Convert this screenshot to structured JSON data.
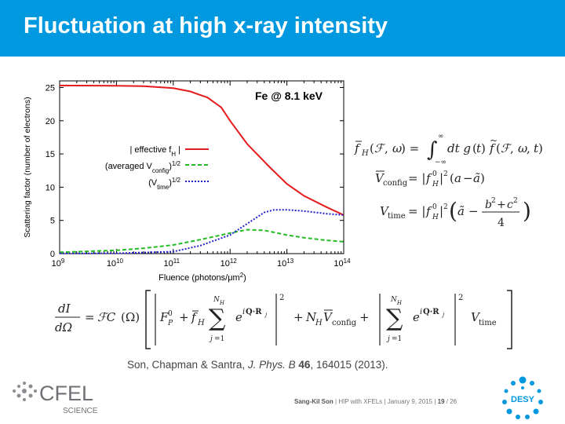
{
  "slide": {
    "title": "Fluctuation at high x-ray intensity"
  },
  "chart_data": {
    "type": "line",
    "annotation": "Fe @ 8.1 keV",
    "xlabel": "Fluence (photons/μm²)",
    "ylabel": "Scattering factor (number of electrons)",
    "xscale": "log",
    "xlim": [
      1000000000.0,
      100000000000000.0
    ],
    "ylim": [
      0,
      26
    ],
    "x_ticks": [
      {
        "base": "10",
        "exp": "9",
        "value": 1000000000.0
      },
      {
        "base": "10",
        "exp": "10",
        "value": 10000000000.0
      },
      {
        "base": "10",
        "exp": "11",
        "value": 100000000000.0
      },
      {
        "base": "10",
        "exp": "12",
        "value": 1000000000000.0
      },
      {
        "base": "10",
        "exp": "13",
        "value": 10000000000000.0
      },
      {
        "base": "10",
        "exp": "14",
        "value": 100000000000000.0
      }
    ],
    "y_ticks": [
      "0",
      "5",
      "10",
      "15",
      "20",
      "25"
    ],
    "legend_position": "middle-left",
    "series": [
      {
        "name": "| effective fH |",
        "color": "#e41a1c",
        "dash": "solid",
        "x": [
          1000000000.0,
          10000000000.0,
          30000000000.0,
          100000000000.0,
          200000000000.0,
          400000000000.0,
          700000000000.0,
          1000000000000.0,
          2000000000000.0,
          5000000000000.0,
          10000000000000.0,
          20000000000000.0,
          50000000000000.0,
          100000000000000.0
        ],
        "y": [
          25.3,
          25.25,
          25.2,
          24.9,
          24.4,
          23.5,
          22.0,
          20.0,
          16.5,
          13.0,
          10.5,
          8.7,
          7.0,
          5.8
        ]
      },
      {
        "name": "(averaged Vconfig)^1/2",
        "color": "#22bb22",
        "dash": "dashed",
        "x": [
          1000000000.0,
          10000000000.0,
          30000000000.0,
          100000000000.0,
          300000000000.0,
          1000000000000.0,
          2000000000000.0,
          4000000000000.0,
          10000000000000.0,
          20000000000000.0,
          50000000000000.0,
          100000000000000.0
        ],
        "y": [
          0.2,
          0.5,
          0.8,
          1.3,
          2.1,
          3.1,
          3.6,
          3.5,
          2.8,
          2.4,
          2.0,
          1.8
        ]
      },
      {
        "name": "(Vtime)^1/2",
        "color": "#2222cc",
        "dash": "dotted",
        "x": [
          1000000000.0,
          10000000000.0,
          100000000000.0,
          300000000000.0,
          1000000000000.0,
          2000000000000.0,
          4000000000000.0,
          6000000000000.0,
          10000000000000.0,
          20000000000000.0,
          50000000000000.0,
          100000000000000.0
        ],
        "y": [
          0.02,
          0.05,
          0.3,
          1.2,
          2.8,
          4.5,
          6.2,
          6.6,
          6.6,
          6.4,
          6.0,
          5.8
        ]
      }
    ]
  },
  "legend_labels": [
    {
      "main": "| effective f",
      "sub": "H",
      "tail": " |"
    },
    {
      "main": "(averaged V",
      "sub": "config",
      "tail": ")",
      "sup": "1/2"
    },
    {
      "main": "(V",
      "sub": "time",
      "tail": ")",
      "sup": "1/2"
    }
  ],
  "equations": {
    "fH": "f̄_H(ℱ, ω) = ∫ dt g(t) f̃(ℱ, ω, t)",
    "vconfig": "V̄_config = |f⁰_H|² (a − ã)",
    "vtime": "V_time = |f⁰_H|² (ã − (b² + c²)/4)",
    "main": "dI/dΩ = ℱC(Ω)"
  },
  "citation": {
    "authors": "Son, Chapman & Santra, ",
    "journal": "J. Phys. B",
    "volume": " 46",
    "rest": ", 164015 (2013)."
  },
  "footer": {
    "author": "Sang-Kil Son",
    "talk": "HIP with XFELs",
    "date": "January 9, 2015",
    "page": "19",
    "total": "/ 26"
  },
  "logos": {
    "cfel_text": "CFEL",
    "cfel_sub": "SCIENCE",
    "desy_text": "DESY"
  },
  "colors": {
    "title_bar": "#0099df",
    "desy_blue": "#0099df"
  }
}
